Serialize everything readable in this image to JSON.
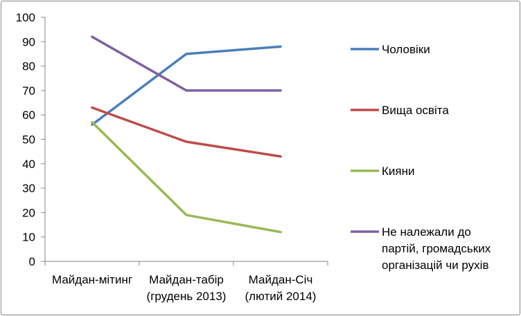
{
  "chart_data": {
    "type": "line",
    "title": "",
    "xlabel": "",
    "ylabel": "",
    "categories": [
      [
        "Майдан-мітинг"
      ],
      [
        "Майдан-табір",
        "(грудень 2013)"
      ],
      [
        "Майдан-Січ",
        "(лютий 2014)"
      ]
    ],
    "ylim": [
      0,
      100
    ],
    "ytick_step": 10,
    "grid": false,
    "legend_position": "right",
    "series": [
      {
        "name": "Чоловіки",
        "name_lines": [
          "Чоловіки"
        ],
        "color": "#4A7EBB",
        "values": [
          56,
          85,
          88
        ]
      },
      {
        "name": "Вища освіта",
        "name_lines": [
          "Вища освіта"
        ],
        "color": "#BE4B48",
        "values": [
          63,
          49,
          43
        ]
      },
      {
        "name": "Кияни",
        "name_lines": [
          "Кияни"
        ],
        "color": "#98B954",
        "values": [
          57,
          19,
          12
        ]
      },
      {
        "name": "Не належали до партій, громадських організацій чи рухів",
        "name_lines": [
          "Не належали до",
          "партій, громадських",
          "організацій чи рухів"
        ],
        "color": "#7D60A0",
        "values": [
          92,
          70,
          70
        ]
      }
    ]
  }
}
